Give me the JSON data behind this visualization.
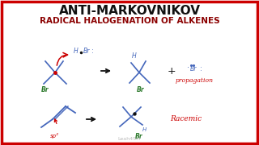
{
  "title_line1": "ANTI-MARKOVNIKOV",
  "title_line2": "RADICAL HALOGENATION OF ALKENES",
  "title_color": "#111111",
  "subtitle_color": "#8b0000",
  "bg_color": "#ffffff",
  "border_color": "#cc0000",
  "blue": "#4466bb",
  "green": "#2d7a2d",
  "red": "#cc0000",
  "black": "#111111",
  "gray": "#aaaaaa",
  "watermark": "Leah4Sci",
  "propagation_text": "propagation",
  "racemic_text": "Racemic",
  "figw": 3.2,
  "figh": 1.8,
  "dpi": 100
}
